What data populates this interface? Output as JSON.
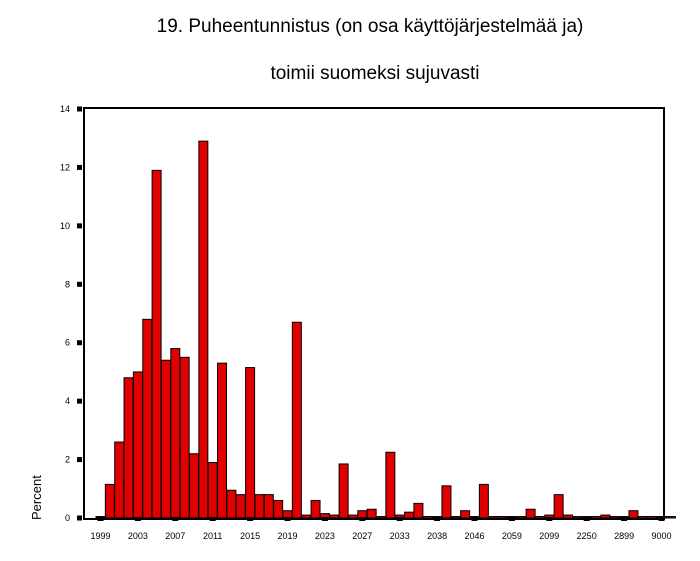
{
  "chart_data": {
    "type": "bar",
    "title_line1": "19. Puheentunnistus (on osa käyttöjärjestelmää ja)",
    "title_line2": "toimii suomeksi sujuvasti",
    "ylabel": "Percent",
    "xlabel": "",
    "ylim": [
      0,
      14
    ],
    "yticks": [
      0,
      2,
      4,
      6,
      8,
      10,
      12,
      14
    ],
    "grid": false,
    "bar_color": "#e00000",
    "x_tick_labels": [
      {
        "index": 0,
        "label": "1999"
      },
      {
        "index": 4,
        "label": "2003"
      },
      {
        "index": 8,
        "label": "2007"
      },
      {
        "index": 12,
        "label": "2011"
      },
      {
        "index": 16,
        "label": "2015"
      },
      {
        "index": 20,
        "label": "2019"
      },
      {
        "index": 24,
        "label": "2023"
      },
      {
        "index": 28,
        "label": "2027"
      },
      {
        "index": 32,
        "label": "2033"
      },
      {
        "index": 36,
        "label": "2038"
      },
      {
        "index": 40,
        "label": "2046"
      },
      {
        "index": 44,
        "label": "2059"
      },
      {
        "index": 48,
        "label": "2099"
      },
      {
        "index": 52,
        "label": "2250"
      },
      {
        "index": 56,
        "label": "2899"
      },
      {
        "index": 60,
        "label": "9000"
      }
    ],
    "values": [
      0.05,
      1.15,
      2.6,
      4.8,
      5.0,
      6.8,
      11.9,
      5.4,
      5.8,
      5.5,
      2.2,
      12.9,
      1.9,
      5.3,
      0.95,
      0.8,
      5.15,
      0.8,
      0.8,
      0.6,
      0.25,
      6.7,
      0.1,
      0.6,
      0.15,
      0.1,
      1.85,
      0.1,
      0.25,
      0.3,
      0.05,
      2.25,
      0.1,
      0.2,
      0.5,
      0.05,
      0.05,
      1.1,
      0.05,
      0.25,
      0.05,
      1.15,
      0.05,
      0.05,
      0.05,
      0.05,
      0.3,
      0.05,
      0.1,
      0.8,
      0.1,
      0.05,
      0.05,
      0.05,
      0.1,
      0.05,
      0.05,
      0.25,
      0.05,
      0.05,
      0.05,
      0.05
    ]
  }
}
